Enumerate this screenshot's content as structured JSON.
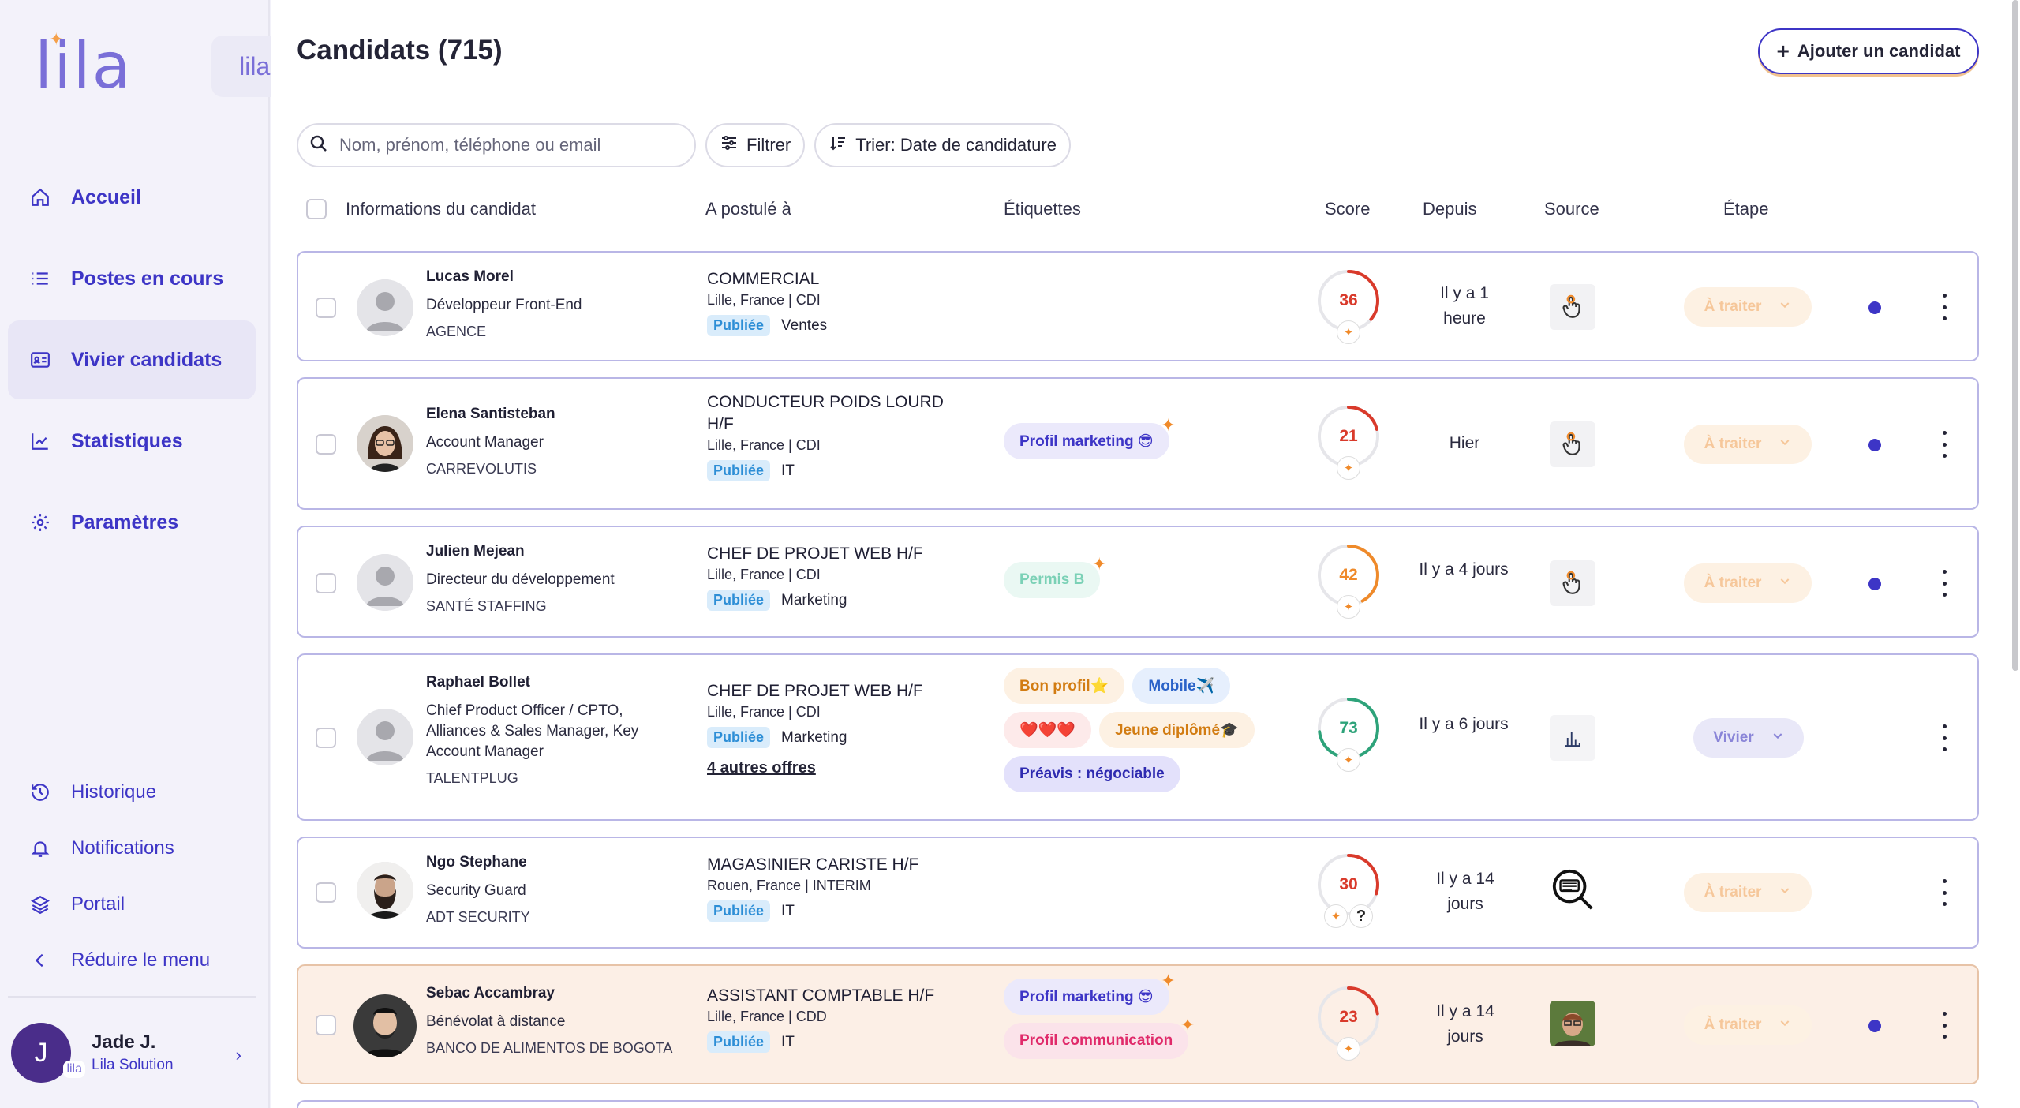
{
  "brand": {
    "logo": "lila",
    "badge": "lila"
  },
  "nav": [
    {
      "label": "Accueil",
      "icon": "home-icon"
    },
    {
      "label": "Postes en cours",
      "icon": "list-icon"
    },
    {
      "label": "Vivier candidats",
      "icon": "id-card-icon",
      "active": true
    },
    {
      "label": "Statistiques",
      "icon": "chart-icon"
    },
    {
      "label": "Paramètres",
      "icon": "gear-icon"
    }
  ],
  "nav_bottom": [
    {
      "label": "Historique",
      "icon": "history-icon"
    },
    {
      "label": "Notifications",
      "icon": "bell-icon"
    },
    {
      "label": "Portail",
      "icon": "layers-icon"
    },
    {
      "label": "Réduire le menu",
      "icon": "chevron-left-icon"
    }
  ],
  "user": {
    "initial": "J",
    "mini": "lila",
    "name": "Jade J.",
    "org": "Lila Solution"
  },
  "header": {
    "title": "Candidats (715)",
    "add_label": "Ajouter un candidat"
  },
  "toolbar": {
    "search_placeholder": "Nom, prénom, téléphone ou email",
    "filter_label": "Filtrer",
    "sort_label": "Trier: Date de candidature"
  },
  "columns": {
    "info": "Informations du candidat",
    "applied": "A postulé à",
    "tags": "Étiquettes",
    "score": "Score",
    "since": "Depuis",
    "source": "Source",
    "stage": "Étape"
  },
  "candidates": [
    {
      "name": "Lucas Morel",
      "role": "Développeur Front-End",
      "company": "AGENCE",
      "job": "COMMERCIAL",
      "location": "Lille, France | CDI",
      "status": "Publiée",
      "dept": "Ventes",
      "more": "",
      "tags": [],
      "score": 36,
      "score_color": "#d93a2b",
      "since": "Il y a 1 heure",
      "stage": "À traiter"
    },
    {
      "name": "Elena Santisteban",
      "role": "Account Manager",
      "company": "CARREVOLUTIS",
      "job": "CONDUCTEUR POIDS LOURD H/F",
      "location": "Lille, France | CDI",
      "status": "Publiée",
      "dept": "IT",
      "more": "",
      "tags": [
        {
          "label": "Profil marketing 😎",
          "style": "purple"
        }
      ],
      "score": 21,
      "score_color": "#d93a2b",
      "since": "Hier",
      "stage": "À traiter"
    },
    {
      "name": "Julien Mejean",
      "role": "Directeur du développement",
      "company": "SANTÉ STAFFING",
      "job": "CHEF DE PROJET WEB H/F",
      "location": "Lille, France | CDI",
      "status": "Publiée",
      "dept": "Marketing",
      "more": "",
      "tags": [
        {
          "label": "Permis B",
          "style": "green"
        }
      ],
      "score": 42,
      "score_color": "#ef8a2a",
      "since": "Il y a 4 jours",
      "stage": "À traiter"
    },
    {
      "name": "Raphael Bollet",
      "role": "Chief Product Officer / CPTO, Alliances & Sales Manager, Key Account Manager",
      "company": "TALENTPLUG",
      "job": "CHEF DE PROJET WEB H/F",
      "location": "Lille, France | CDI",
      "status": "Publiée",
      "dept": "Marketing",
      "more": "4 autres offres",
      "tags": [
        {
          "label": "Bon profil⭐",
          "style": "orange"
        },
        {
          "label": "Mobile✈️",
          "style": "blue"
        },
        {
          "label": "❤️❤️❤️",
          "style": "red"
        },
        {
          "label": "Jeune diplômé🎓",
          "style": "orange"
        },
        {
          "label": "Préavis : négociable",
          "style": "lav"
        }
      ],
      "score": 73,
      "score_color": "#2ea37a",
      "since": "Il y a 6 jours",
      "stage": "Vivier"
    },
    {
      "name": "Ngo Stephane",
      "role": "Security Guard",
      "company": "ADT SECURITY",
      "job": "MAGASINIER CARISTE H/F",
      "location": "Rouen, France | INTERIM",
      "status": "Publiée",
      "dept": "IT",
      "more": "",
      "tags": [],
      "score": 30,
      "score_color": "#d93a2b",
      "since": "Il y a 14 jours",
      "stage": "À traiter"
    },
    {
      "name": "Sebac Accambray",
      "role": "Bénévolat à distance",
      "company": "BANCO DE ALIMENTOS DE BOGOTA",
      "job": "ASSISTANT COMPTABLE H/F",
      "location": "Lille, France | CDD",
      "status": "Publiée",
      "dept": "IT",
      "more": "",
      "tags": [
        {
          "label": "Profil marketing 😎",
          "style": "purple"
        },
        {
          "label": "Profil communication",
          "style": "pink"
        }
      ],
      "score": 23,
      "score_color": "#d93a2b",
      "since": "Il y a 14 jours",
      "stage": "À traiter"
    }
  ]
}
